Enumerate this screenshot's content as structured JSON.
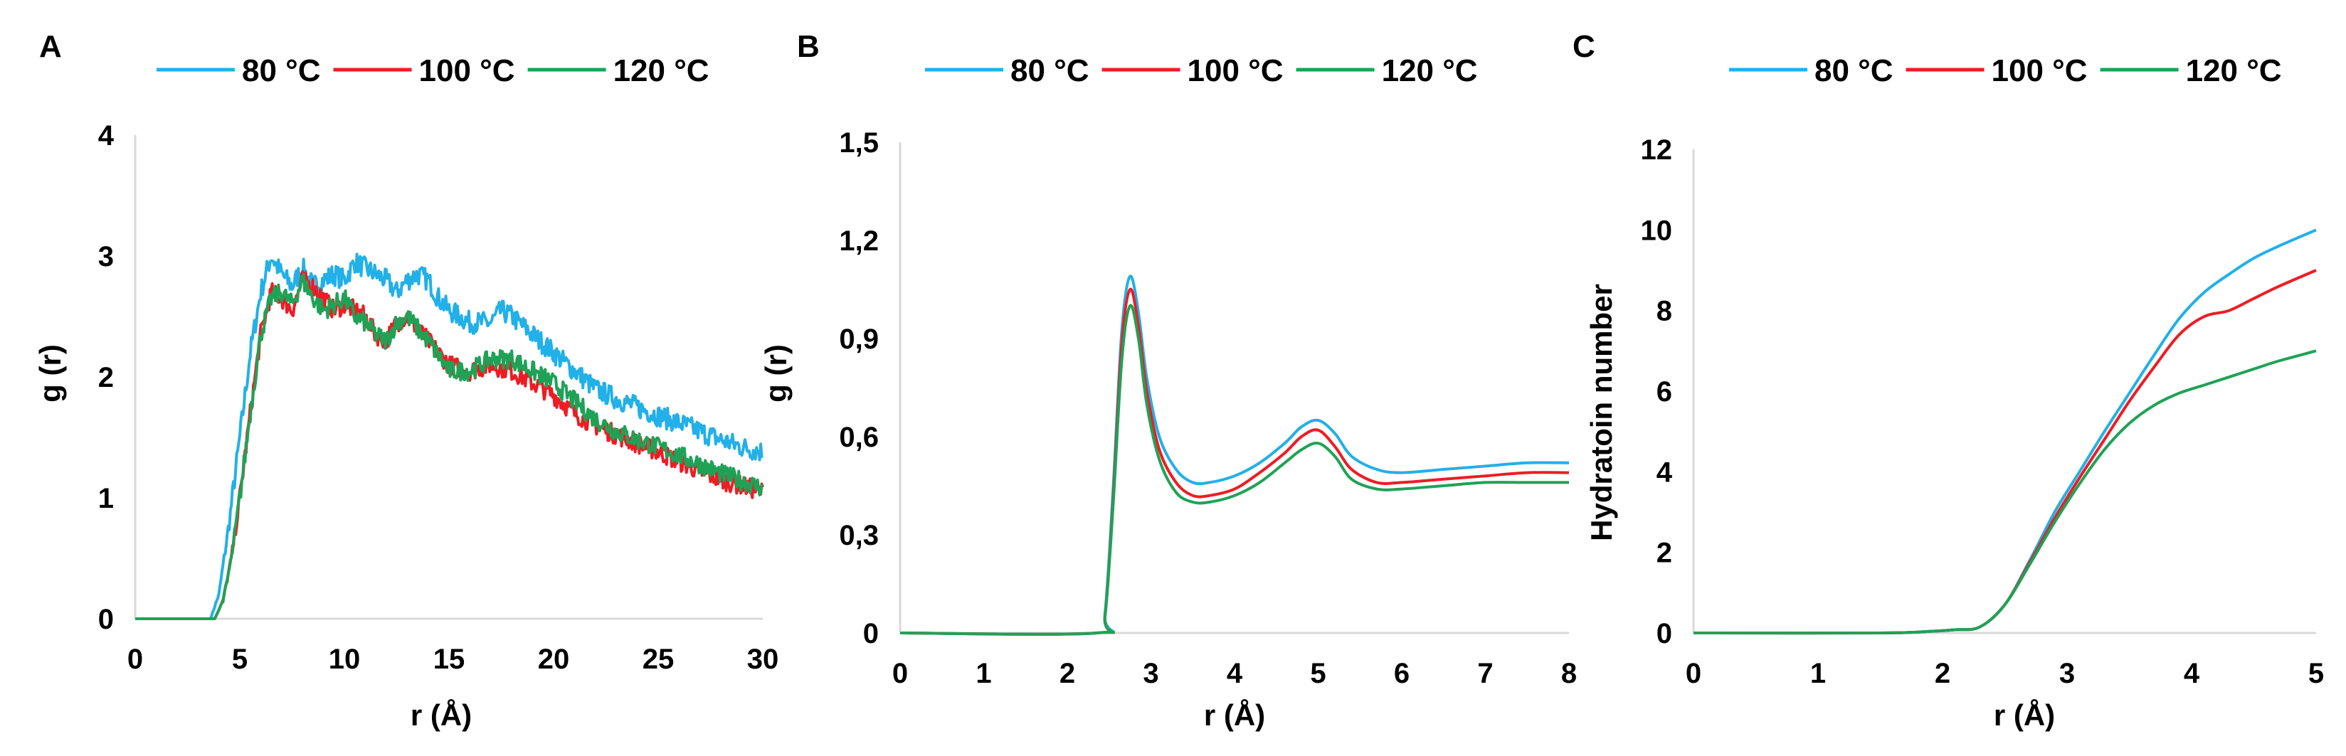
{
  "colors": {
    "80": "#22b0e8",
    "100": "#ee1c24",
    "120": "#1fa256",
    "axis": "#d9d9d9"
  },
  "chart_data": [
    {
      "type": "line",
      "panel": "A",
      "xlabel": "r (Å)",
      "ylabel": "g (r)",
      "xlim": [
        0,
        30
      ],
      "ylim": [
        0,
        4
      ],
      "xticks": [
        0,
        5,
        10,
        15,
        20,
        25,
        30
      ],
      "yticks": [
        0,
        1,
        2,
        3,
        4
      ],
      "xtick_labels": [
        "0",
        "5",
        "10",
        "15",
        "20",
        "25",
        "30"
      ],
      "ytick_labels": [
        "0",
        "1",
        "2",
        "3",
        "4"
      ],
      "legend_position": "top",
      "series": [
        {
          "name": "80 °C",
          "color": "#22b0e8",
          "noise": 0.09,
          "x": [
            0,
            3.6,
            4.0,
            4.5,
            5.0,
            5.5,
            6.0,
            6.5,
            7.0,
            7.5,
            8.0,
            8.5,
            9.0,
            9.5,
            10.0,
            10.5,
            11.0,
            11.5,
            12.0,
            12.5,
            13.0,
            13.5,
            14.0,
            14.5,
            15.0,
            16.0,
            17.0,
            17.5,
            18.0,
            19.0,
            20.0,
            21.0,
            22.0,
            23.0,
            24.0,
            25.0,
            26.0,
            27.0,
            28.0,
            29.0,
            30.0
          ],
          "y": [
            0,
            0,
            0.2,
            0.8,
            1.5,
            2.2,
            2.7,
            3.0,
            2.85,
            2.75,
            2.9,
            2.75,
            2.8,
            2.85,
            2.8,
            2.95,
            2.9,
            2.85,
            2.8,
            2.7,
            2.8,
            2.85,
            2.8,
            2.65,
            2.55,
            2.45,
            2.45,
            2.55,
            2.5,
            2.35,
            2.2,
            2.05,
            1.9,
            1.82,
            1.75,
            1.68,
            1.62,
            1.55,
            1.48,
            1.42,
            1.38
          ]
        },
        {
          "name": "100 °C",
          "color": "#ee1c24",
          "noise": 0.08,
          "x": [
            0,
            3.8,
            4.2,
            4.6,
            5.0,
            5.5,
            6.0,
            6.5,
            7.0,
            7.5,
            8.0,
            8.5,
            9.0,
            9.5,
            10.0,
            10.5,
            11.0,
            11.5,
            12.0,
            12.5,
            13.0,
            13.5,
            14.0,
            15.0,
            16.0,
            17.0,
            18.0,
            19.0,
            20.0,
            21.0,
            22.0,
            23.0,
            24.0,
            25.0,
            26.0,
            27.0,
            28.0,
            29.0,
            30.0
          ],
          "y": [
            0,
            0,
            0.15,
            0.5,
            1.0,
            1.7,
            2.35,
            2.7,
            2.65,
            2.55,
            2.8,
            2.75,
            2.65,
            2.55,
            2.6,
            2.55,
            2.5,
            2.35,
            2.3,
            2.45,
            2.5,
            2.4,
            2.3,
            2.1,
            2.05,
            2.1,
            2.05,
            1.95,
            1.85,
            1.7,
            1.6,
            1.52,
            1.45,
            1.38,
            1.3,
            1.22,
            1.15,
            1.1,
            1.05
          ]
        },
        {
          "name": "120 °C",
          "color": "#1fa256",
          "noise": 0.08,
          "x": [
            0,
            3.8,
            4.2,
            4.6,
            5.0,
            5.5,
            6.0,
            6.5,
            7.0,
            7.5,
            8.0,
            8.5,
            9.0,
            9.5,
            10.0,
            10.5,
            11.0,
            11.5,
            12.0,
            12.5,
            13.0,
            13.5,
            14.0,
            15.0,
            16.0,
            17.0,
            18.0,
            19.0,
            20.0,
            21.0,
            22.0,
            23.0,
            24.0,
            25.0,
            26.0,
            27.0,
            28.0,
            29.0,
            30.0
          ],
          "y": [
            0,
            0,
            0.15,
            0.5,
            1.0,
            1.7,
            2.35,
            2.65,
            2.7,
            2.6,
            2.8,
            2.65,
            2.55,
            2.6,
            2.65,
            2.5,
            2.45,
            2.35,
            2.3,
            2.45,
            2.5,
            2.4,
            2.3,
            2.05,
            2.05,
            2.15,
            2.15,
            2.05,
            1.95,
            1.8,
            1.65,
            1.55,
            1.48,
            1.42,
            1.35,
            1.28,
            1.2,
            1.14,
            1.08
          ]
        }
      ]
    },
    {
      "type": "line",
      "panel": "B",
      "xlabel": "r (Å)",
      "ylabel": "g (r)",
      "xlim": [
        0,
        8
      ],
      "ylim": [
        0,
        1.5
      ],
      "xticks": [
        0,
        1,
        2,
        3,
        4,
        5,
        6,
        7,
        8
      ],
      "yticks": [
        0,
        0.3,
        0.6,
        0.9,
        1.2,
        1.5
      ],
      "xtick_labels": [
        "0",
        "1",
        "2",
        "3",
        "4",
        "5",
        "6",
        "7",
        "8"
      ],
      "ytick_labels": [
        "0",
        "0,3",
        "0,6",
        "0,9",
        "1,2",
        "1,5"
      ],
      "legend_position": "top",
      "series": [
        {
          "name": "80 °C",
          "color": "#22b0e8",
          "x": [
            0,
            2.35,
            2.45,
            2.55,
            2.65,
            2.75,
            2.85,
            2.95,
            3.1,
            3.3,
            3.5,
            3.7,
            4.0,
            4.3,
            4.6,
            4.8,
            5.0,
            5.2,
            5.4,
            5.7,
            6.0,
            6.5,
            7.0,
            7.5,
            8.0
          ],
          "y": [
            0,
            0,
            0.06,
            0.45,
            0.92,
            1.09,
            0.98,
            0.78,
            0.6,
            0.5,
            0.46,
            0.46,
            0.48,
            0.52,
            0.58,
            0.63,
            0.65,
            0.61,
            0.54,
            0.5,
            0.49,
            0.5,
            0.51,
            0.52,
            0.52
          ]
        },
        {
          "name": "100 °C",
          "color": "#ee1c24",
          "x": [
            0,
            2.35,
            2.45,
            2.55,
            2.65,
            2.75,
            2.85,
            2.95,
            3.1,
            3.3,
            3.5,
            3.7,
            4.0,
            4.3,
            4.6,
            4.8,
            5.0,
            5.2,
            5.4,
            5.7,
            6.0,
            6.5,
            7.0,
            7.5,
            8.0
          ],
          "y": [
            0,
            0,
            0.05,
            0.42,
            0.88,
            1.05,
            0.94,
            0.74,
            0.56,
            0.46,
            0.42,
            0.42,
            0.44,
            0.49,
            0.55,
            0.6,
            0.62,
            0.57,
            0.5,
            0.46,
            0.46,
            0.47,
            0.48,
            0.49,
            0.49
          ]
        },
        {
          "name": "120 °C",
          "color": "#1fa256",
          "x": [
            0,
            2.35,
            2.45,
            2.55,
            2.65,
            2.75,
            2.85,
            2.95,
            3.1,
            3.3,
            3.5,
            3.7,
            4.0,
            4.3,
            4.6,
            4.8,
            5.0,
            5.2,
            5.4,
            5.7,
            6.0,
            6.5,
            7.0,
            7.5,
            8.0
          ],
          "y": [
            0,
            0,
            0.05,
            0.4,
            0.83,
            1.0,
            0.9,
            0.7,
            0.53,
            0.43,
            0.4,
            0.4,
            0.42,
            0.46,
            0.52,
            0.56,
            0.58,
            0.54,
            0.47,
            0.44,
            0.44,
            0.45,
            0.46,
            0.46,
            0.46
          ]
        }
      ]
    },
    {
      "type": "line",
      "panel": "C",
      "xlabel": "r (Å)",
      "ylabel": "Hydratoin number",
      "xlim": [
        0,
        5
      ],
      "ylim": [
        0,
        12
      ],
      "xticks": [
        0,
        1,
        2,
        3,
        4,
        5
      ],
      "yticks": [
        0,
        2,
        4,
        6,
        8,
        10,
        12
      ],
      "xtick_labels": [
        "0",
        "1",
        "2",
        "3",
        "4",
        "5"
      ],
      "ytick_labels": [
        "0",
        "2",
        "4",
        "6",
        "8",
        "10",
        "12"
      ],
      "legend_position": "top",
      "series": [
        {
          "name": "80 °C",
          "color": "#22b0e8",
          "x": [
            0,
            1.5,
            1.9,
            2.1,
            2.3,
            2.5,
            2.7,
            2.9,
            3.1,
            3.3,
            3.5,
            3.7,
            3.9,
            4.1,
            4.3,
            4.5,
            4.7,
            5.0
          ],
          "y": [
            0,
            0,
            0.04,
            0.08,
            0.15,
            0.7,
            1.8,
            3.0,
            4.0,
            5.0,
            5.95,
            6.9,
            7.8,
            8.45,
            8.9,
            9.3,
            9.6,
            10.0
          ]
        },
        {
          "name": "100 °C",
          "color": "#ee1c24",
          "x": [
            0,
            1.5,
            1.9,
            2.1,
            2.3,
            2.5,
            2.7,
            2.9,
            3.1,
            3.3,
            3.5,
            3.7,
            3.9,
            4.1,
            4.3,
            4.5,
            4.7,
            5.0
          ],
          "y": [
            0,
            0,
            0.04,
            0.08,
            0.15,
            0.7,
            1.75,
            2.85,
            3.85,
            4.8,
            5.75,
            6.6,
            7.4,
            7.85,
            8.0,
            8.3,
            8.6,
            9.0
          ]
        },
        {
          "name": "120 °C",
          "color": "#1fa256",
          "x": [
            0,
            1.5,
            1.9,
            2.1,
            2.3,
            2.5,
            2.7,
            2.9,
            3.1,
            3.3,
            3.5,
            3.7,
            3.9,
            4.1,
            4.3,
            4.5,
            4.7,
            5.0
          ],
          "y": [
            0,
            0,
            0.04,
            0.08,
            0.15,
            0.7,
            1.7,
            2.75,
            3.7,
            4.55,
            5.2,
            5.65,
            5.95,
            6.15,
            6.35,
            6.55,
            6.75,
            7.0
          ]
        }
      ]
    }
  ]
}
